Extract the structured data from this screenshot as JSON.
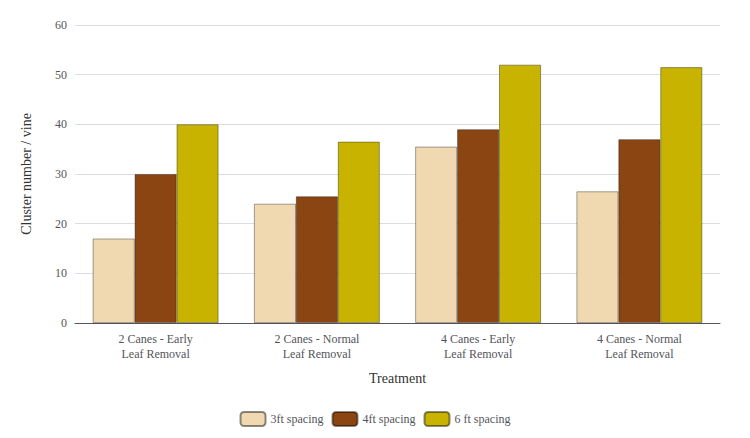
{
  "chart_data": {
    "type": "bar",
    "categories": [
      "2 Canes - Early\nLeaf Removal",
      "2 Canes - Normal\nLeaf Removal",
      "4 Canes - Early\nLeaf Removal",
      "4 Canes - Normal\nLeaf Removal"
    ],
    "series": [
      {
        "name": "3ft spacing",
        "color": "#f0d9b0",
        "values": [
          17,
          24,
          35.5,
          26.5
        ]
      },
      {
        "name": "4ft spacing",
        "color": "#8b4513",
        "values": [
          30,
          25.5,
          39,
          37
        ]
      },
      {
        "name": "6 ft spacing",
        "color": "#c8b400",
        "values": [
          40,
          36.5,
          52,
          51.5
        ]
      }
    ],
    "xlabel": "Treatment",
    "ylabel": "Cluster number / vine",
    "ylim": [
      0,
      60
    ],
    "yticks": [
      0,
      10,
      20,
      30,
      40,
      50,
      60
    ],
    "grid": true,
    "legend": "bottom"
  }
}
